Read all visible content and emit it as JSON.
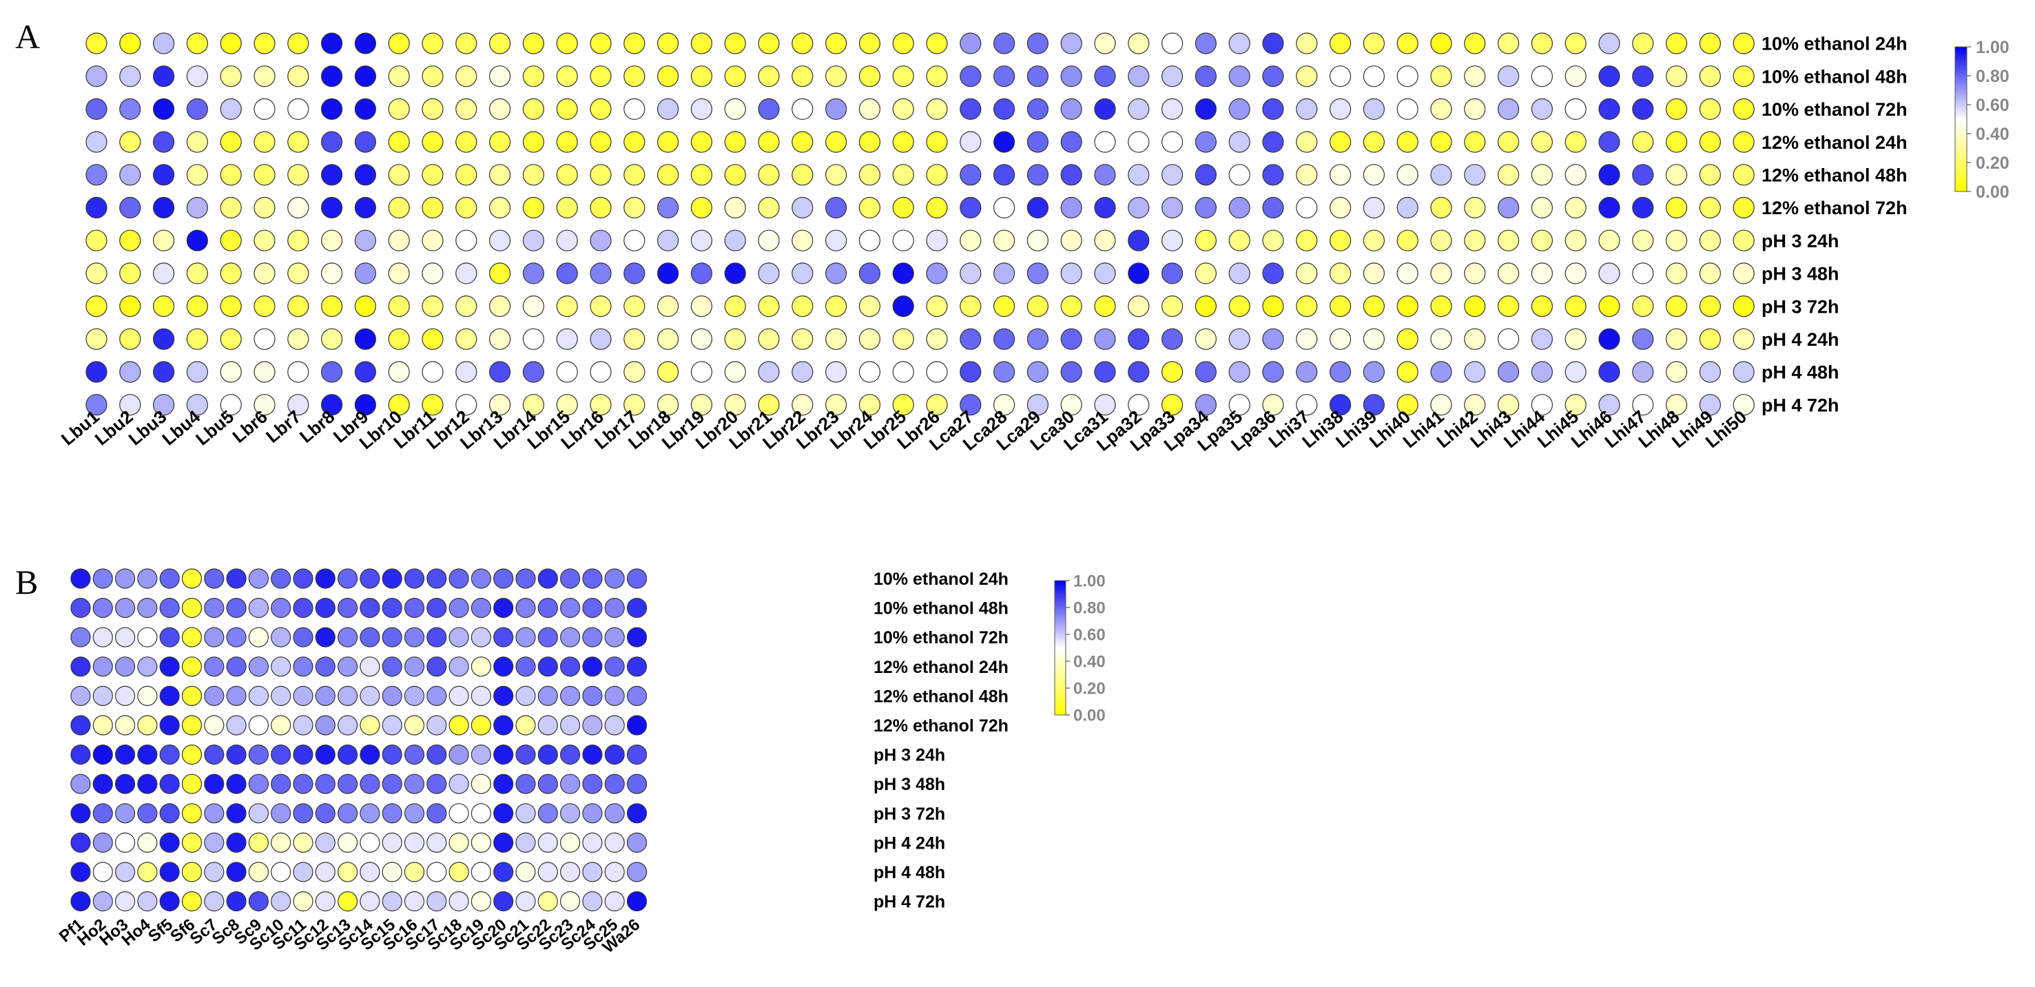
{
  "colors": {
    "low": "#ffff00",
    "mid": "#ffffff",
    "high": "#0000ee"
  },
  "chart_data": [
    {
      "type": "heatmap",
      "panel_label": "A",
      "rows": [
        "10% ethanol 24h",
        "10% ethanol 48h",
        "10% ethanol 72h",
        "12% ethanol 24h",
        "12% ethanol 48h",
        "12% ethanol 72h",
        "pH 3 24h",
        "pH 3 48h",
        "pH 3 72h",
        "pH 4 24h",
        "pH 4 48h",
        "pH 4 72h"
      ],
      "columns": [
        "Lbu1",
        "Lbu2",
        "Lbu3",
        "Lbu4",
        "Lbu5",
        "Lbr6",
        "Lbr7",
        "Lbr8",
        "Lbr9",
        "Lbr10",
        "Lbr11",
        "Lbr12",
        "Lbr13",
        "Lbr14",
        "Lbr15",
        "Lbr16",
        "Lbr17",
        "Lbr18",
        "Lbr19",
        "Lbr20",
        "Lbr21",
        "Lbr22",
        "Lbr23",
        "Lbr24",
        "Lbr25",
        "Lbr26",
        "Lca27",
        "Lca28",
        "Lca29",
        "Lca30",
        "Lca31",
        "Lpa32",
        "Lpa33",
        "Lpa34",
        "Lpa35",
        "Lpa36",
        "Lhi37",
        "Lhi38",
        "Lhi39",
        "Lhi40",
        "Lhi41",
        "Lhi42",
        "Lhi43",
        "Lhi44",
        "Lhi45",
        "Lhi46",
        "Lhi47",
        "Lhi48",
        "Lhi49",
        "Lhi50"
      ],
      "values": [
        [
          0.1,
          0.05,
          0.62,
          0.1,
          0.05,
          0.1,
          0.1,
          0.97,
          0.97,
          0.1,
          0.15,
          0.18,
          0.15,
          0.1,
          0.1,
          0.1,
          0.1,
          0.1,
          0.1,
          0.1,
          0.1,
          0.1,
          0.1,
          0.1,
          0.1,
          0.1,
          0.7,
          0.78,
          0.78,
          0.65,
          0.4,
          0.35,
          0.5,
          0.75,
          0.6,
          0.88,
          0.3,
          0.1,
          0.2,
          0.1,
          0.05,
          0.1,
          0.25,
          0.2,
          0.2,
          0.6,
          0.2,
          0.1,
          0.1,
          0.1
        ],
        [
          0.65,
          0.6,
          0.92,
          0.55,
          0.3,
          0.35,
          0.3,
          0.97,
          0.97,
          0.3,
          0.25,
          0.3,
          0.45,
          0.2,
          0.2,
          0.15,
          0.15,
          0.1,
          0.15,
          0.15,
          0.2,
          0.2,
          0.25,
          0.15,
          0.2,
          0.2,
          0.8,
          0.78,
          0.78,
          0.72,
          0.8,
          0.65,
          0.6,
          0.8,
          0.7,
          0.8,
          0.3,
          0.5,
          0.5,
          0.5,
          0.25,
          0.4,
          0.6,
          0.5,
          0.45,
          0.9,
          0.88,
          0.3,
          0.25,
          0.15
        ],
        [
          0.8,
          0.75,
          0.97,
          0.8,
          0.6,
          0.5,
          0.5,
          0.97,
          0.97,
          0.25,
          0.25,
          0.3,
          0.4,
          0.2,
          0.15,
          0.15,
          0.5,
          0.6,
          0.55,
          0.45,
          0.8,
          0.5,
          0.7,
          0.4,
          0.3,
          0.3,
          0.85,
          0.85,
          0.8,
          0.7,
          0.92,
          0.6,
          0.55,
          0.95,
          0.7,
          0.85,
          0.6,
          0.55,
          0.6,
          0.5,
          0.35,
          0.4,
          0.65,
          0.6,
          0.5,
          0.9,
          0.9,
          0.1,
          0.2,
          0.1
        ],
        [
          0.6,
          0.2,
          0.85,
          0.3,
          0.1,
          0.2,
          0.2,
          0.85,
          0.85,
          0.1,
          0.1,
          0.15,
          0.15,
          0.1,
          0.1,
          0.1,
          0.1,
          0.1,
          0.1,
          0.1,
          0.1,
          0.1,
          0.1,
          0.1,
          0.1,
          0.1,
          0.55,
          0.97,
          0.8,
          0.8,
          0.5,
          0.5,
          0.5,
          0.75,
          0.6,
          0.85,
          0.3,
          0.1,
          0.15,
          0.1,
          0.1,
          0.15,
          0.2,
          0.25,
          0.2,
          0.85,
          0.2,
          0.1,
          0.1,
          0.1
        ],
        [
          0.75,
          0.65,
          0.92,
          0.3,
          0.2,
          0.2,
          0.25,
          0.95,
          0.95,
          0.25,
          0.2,
          0.2,
          0.3,
          0.25,
          0.2,
          0.2,
          0.2,
          0.15,
          0.15,
          0.15,
          0.2,
          0.2,
          0.3,
          0.25,
          0.25,
          0.2,
          0.8,
          0.85,
          0.8,
          0.85,
          0.75,
          0.6,
          0.6,
          0.85,
          0.5,
          0.85,
          0.35,
          0.45,
          0.45,
          0.45,
          0.6,
          0.6,
          0.3,
          0.4,
          0.45,
          0.95,
          0.85,
          0.35,
          0.25,
          0.2
        ],
        [
          0.92,
          0.8,
          0.95,
          0.65,
          0.25,
          0.3,
          0.45,
          0.95,
          0.95,
          0.2,
          0.15,
          0.2,
          0.3,
          0.1,
          0.2,
          0.15,
          0.25,
          0.75,
          0.1,
          0.4,
          0.25,
          0.6,
          0.8,
          0.2,
          0.1,
          0.1,
          0.85,
          0.5,
          0.92,
          0.7,
          0.9,
          0.65,
          0.65,
          0.75,
          0.7,
          0.8,
          0.5,
          0.4,
          0.55,
          0.6,
          0.2,
          0.3,
          0.7,
          0.4,
          0.35,
          0.95,
          0.92,
          0.1,
          0.2,
          0.1
        ],
        [
          0.2,
          0.1,
          0.35,
          0.97,
          0.1,
          0.3,
          0.25,
          0.4,
          0.65,
          0.4,
          0.4,
          0.5,
          0.55,
          0.6,
          0.55,
          0.65,
          0.5,
          0.6,
          0.55,
          0.6,
          0.45,
          0.4,
          0.55,
          0.5,
          0.5,
          0.55,
          0.4,
          0.4,
          0.45,
          0.4,
          0.4,
          0.9,
          0.55,
          0.2,
          0.25,
          0.3,
          0.2,
          0.15,
          0.3,
          0.2,
          0.3,
          0.3,
          0.3,
          0.3,
          0.35,
          0.35,
          0.35,
          0.35,
          0.3,
          0.25
        ],
        [
          0.3,
          0.2,
          0.55,
          0.25,
          0.2,
          0.35,
          0.3,
          0.45,
          0.7,
          0.4,
          0.45,
          0.55,
          0.1,
          0.75,
          0.8,
          0.75,
          0.8,
          0.97,
          0.8,
          0.97,
          0.6,
          0.6,
          0.7,
          0.8,
          0.97,
          0.7,
          0.6,
          0.65,
          0.75,
          0.6,
          0.6,
          0.97,
          0.8,
          0.3,
          0.6,
          0.85,
          0.35,
          0.3,
          0.4,
          0.45,
          0.4,
          0.4,
          0.4,
          0.45,
          0.45,
          0.55,
          0.5,
          0.35,
          0.35,
          0.4
        ],
        [
          0.1,
          0.05,
          0.1,
          0.1,
          0.1,
          0.15,
          0.15,
          0.1,
          0.05,
          0.2,
          0.25,
          0.3,
          0.35,
          0.45,
          0.25,
          0.25,
          0.25,
          0.35,
          0.4,
          0.2,
          0.2,
          0.2,
          0.2,
          0.3,
          0.97,
          0.25,
          0.2,
          0.1,
          0.15,
          0.15,
          0.1,
          0.35,
          0.25,
          0.05,
          0.1,
          0.05,
          0.15,
          0.1,
          0.1,
          0.05,
          0.1,
          0.05,
          0.1,
          0.1,
          0.1,
          0.05,
          0.2,
          0.1,
          0.1,
          0.05
        ],
        [
          0.3,
          0.2,
          0.92,
          0.2,
          0.2,
          0.5,
          0.35,
          0.3,
          0.97,
          0.15,
          0.1,
          0.3,
          0.4,
          0.5,
          0.55,
          0.6,
          0.3,
          0.35,
          0.45,
          0.3,
          0.3,
          0.3,
          0.35,
          0.35,
          0.3,
          0.35,
          0.8,
          0.8,
          0.75,
          0.8,
          0.7,
          0.85,
          0.8,
          0.4,
          0.6,
          0.7,
          0.45,
          0.45,
          0.45,
          0.1,
          0.45,
          0.4,
          0.5,
          0.6,
          0.4,
          0.97,
          0.75,
          0.35,
          0.2,
          0.35
        ],
        [
          0.92,
          0.65,
          0.9,
          0.6,
          0.45,
          0.45,
          0.5,
          0.8,
          0.9,
          0.45,
          0.5,
          0.55,
          0.85,
          0.8,
          0.5,
          0.5,
          0.35,
          0.2,
          0.5,
          0.45,
          0.6,
          0.6,
          0.55,
          0.5,
          0.5,
          0.5,
          0.85,
          0.75,
          0.7,
          0.8,
          0.85,
          0.85,
          0.1,
          0.8,
          0.65,
          0.75,
          0.7,
          0.75,
          0.7,
          0.1,
          0.7,
          0.6,
          0.7,
          0.65,
          0.55,
          0.9,
          0.65,
          0.4,
          0.6,
          0.6
        ],
        [
          0.75,
          0.55,
          0.65,
          0.6,
          0.5,
          0.45,
          0.55,
          0.95,
          0.97,
          0.1,
          0.1,
          0.5,
          0.4,
          0.3,
          0.35,
          0.3,
          0.3,
          0.35,
          0.35,
          0.35,
          0.2,
          0.4,
          0.35,
          0.3,
          0.15,
          0.25,
          0.8,
          0.45,
          0.6,
          0.45,
          0.55,
          0.5,
          0.1,
          0.7,
          0.5,
          0.4,
          0.5,
          0.9,
          0.85,
          0.1,
          0.45,
          0.4,
          0.35,
          0.5,
          0.35,
          0.6,
          0.5,
          0.4,
          0.6,
          0.45
        ]
      ],
      "colorbar": {
        "ticks": [
          "1.00",
          "0.80",
          "0.60",
          "0.40",
          "0.20",
          "0.00"
        ],
        "min": 0,
        "max": 1
      }
    },
    {
      "type": "heatmap",
      "panel_label": "B",
      "rows": [
        "10% ethanol 24h",
        "10% ethanol 48h",
        "10% ethanol 72h",
        "12% ethanol 24h",
        "12% ethanol 48h",
        "12% ethanol 72h",
        "pH 3 24h",
        "pH 3 48h",
        "pH 3 72h",
        "pH 4 24h",
        "pH 4 48h",
        "pH 4 72h"
      ],
      "columns": [
        "Pf1",
        "Ho2",
        "Ho3",
        "Ho4",
        "Sf5",
        "Sf6",
        "Sc7",
        "Sc8",
        "Sc9",
        "Sc10",
        "Sc11",
        "Sc12",
        "Sc13",
        "Sc14",
        "Sc15",
        "Sc16",
        "Sc17",
        "Sc18",
        "Sc19",
        "Sc20",
        "Sc21",
        "Sc22",
        "Sc23",
        "Sc24",
        "Sc25",
        "Wa26"
      ],
      "values": [
        [
          0.95,
          0.75,
          0.7,
          0.7,
          0.8,
          0.1,
          0.8,
          0.9,
          0.7,
          0.8,
          0.85,
          0.95,
          0.8,
          0.85,
          0.92,
          0.85,
          0.85,
          0.8,
          0.75,
          0.8,
          0.8,
          0.9,
          0.8,
          0.8,
          0.75,
          0.8
        ],
        [
          0.85,
          0.75,
          0.7,
          0.7,
          0.8,
          0.1,
          0.75,
          0.8,
          0.65,
          0.75,
          0.85,
          0.9,
          0.8,
          0.85,
          0.85,
          0.8,
          0.85,
          0.75,
          0.75,
          0.95,
          0.75,
          0.8,
          0.75,
          0.8,
          0.75,
          0.9
        ],
        [
          0.75,
          0.55,
          0.55,
          0.5,
          0.85,
          0.1,
          0.7,
          0.75,
          0.45,
          0.65,
          0.8,
          0.95,
          0.75,
          0.8,
          0.8,
          0.75,
          0.85,
          0.65,
          0.6,
          0.85,
          0.7,
          0.8,
          0.7,
          0.75,
          0.7,
          0.95
        ],
        [
          0.9,
          0.7,
          0.7,
          0.65,
          0.95,
          0.1,
          0.75,
          0.8,
          0.7,
          0.6,
          0.75,
          0.8,
          0.7,
          0.55,
          0.8,
          0.7,
          0.85,
          0.65,
          0.4,
          0.95,
          0.8,
          0.9,
          0.85,
          0.95,
          0.8,
          0.9
        ],
        [
          0.65,
          0.6,
          0.55,
          0.45,
          0.95,
          0.1,
          0.7,
          0.7,
          0.6,
          0.6,
          0.65,
          0.7,
          0.65,
          0.6,
          0.7,
          0.65,
          0.7,
          0.55,
          0.55,
          0.95,
          0.6,
          0.7,
          0.7,
          0.75,
          0.7,
          0.75
        ],
        [
          0.9,
          0.35,
          0.4,
          0.3,
          0.95,
          0.1,
          0.45,
          0.6,
          0.5,
          0.4,
          0.6,
          0.7,
          0.6,
          0.3,
          0.6,
          0.35,
          0.6,
          0.1,
          0.1,
          0.95,
          0.3,
          0.6,
          0.6,
          0.65,
          0.6,
          0.97
        ],
        [
          0.9,
          0.97,
          0.95,
          0.95,
          0.85,
          0.1,
          0.85,
          0.9,
          0.8,
          0.85,
          0.9,
          0.95,
          0.9,
          0.95,
          0.85,
          0.8,
          0.85,
          0.7,
          0.65,
          0.95,
          0.85,
          0.9,
          0.85,
          0.95,
          0.9,
          0.85
        ],
        [
          0.7,
          0.95,
          0.95,
          0.95,
          0.9,
          0.1,
          0.95,
          0.95,
          0.75,
          0.8,
          0.8,
          0.8,
          0.8,
          0.8,
          0.8,
          0.75,
          0.8,
          0.6,
          0.45,
          0.95,
          0.8,
          0.8,
          0.7,
          0.8,
          0.8,
          0.8
        ],
        [
          0.95,
          0.8,
          0.7,
          0.8,
          0.85,
          0.1,
          0.7,
          0.95,
          0.6,
          0.7,
          0.8,
          0.8,
          0.75,
          0.7,
          0.75,
          0.7,
          0.8,
          0.5,
          0.5,
          0.95,
          0.6,
          0.75,
          0.65,
          0.7,
          0.7,
          0.95
        ],
        [
          0.9,
          0.7,
          0.5,
          0.45,
          0.95,
          0.15,
          0.65,
          0.95,
          0.25,
          0.4,
          0.35,
          0.6,
          0.45,
          0.5,
          0.55,
          0.55,
          0.55,
          0.4,
          0.45,
          0.95,
          0.6,
          0.55,
          0.45,
          0.55,
          0.55,
          0.7
        ],
        [
          0.95,
          0.5,
          0.6,
          0.25,
          0.95,
          0.15,
          0.6,
          0.95,
          0.4,
          0.5,
          0.6,
          0.55,
          0.3,
          0.55,
          0.45,
          0.3,
          0.5,
          0.25,
          0.5,
          0.9,
          0.45,
          0.55,
          0.55,
          0.6,
          0.55,
          0.7
        ],
        [
          0.95,
          0.65,
          0.55,
          0.6,
          0.95,
          0.1,
          0.6,
          0.92,
          0.85,
          0.6,
          0.4,
          0.55,
          0.1,
          0.55,
          0.6,
          0.55,
          0.6,
          0.55,
          0.45,
          0.9,
          0.55,
          0.3,
          0.45,
          0.6,
          0.55,
          0.97
        ]
      ],
      "colorbar": {
        "ticks": [
          "1.00",
          "0.80",
          "0.60",
          "0.40",
          "0.20",
          "0.00"
        ],
        "min": 0,
        "max": 1
      }
    }
  ]
}
